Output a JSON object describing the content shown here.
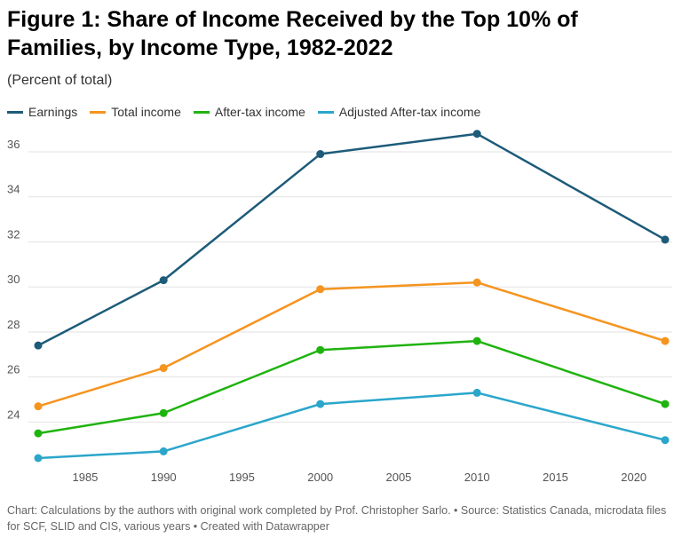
{
  "title": "Figure 1: Share of Income Received by the Top 10% of Families, by Income Type, 1982-2022",
  "subtitle": "(Percent of total)",
  "footer": "Chart: Calculations by the authors with original work completed by Prof. Christopher Sarlo. • Source: Statistics Canada, microdata files for SCF, SLID and CIS, various years • Created with Datawrapper",
  "colors": {
    "earnings": "#1d5b79",
    "total_income": "#f5941f",
    "after_tax_income": "#1fb30e",
    "adjusted_after_tax_income": "#2ba6cb"
  },
  "chart_data": {
    "type": "line",
    "x": [
      1982,
      1990,
      2000,
      2010,
      2022
    ],
    "xlim": [
      1982,
      2022
    ],
    "xticks": [
      1985,
      1990,
      1995,
      2000,
      2005,
      2010,
      2015,
      2020
    ],
    "ylim": [
      22.4,
      37
    ],
    "yticks": [
      24,
      26,
      28,
      30,
      32,
      34,
      36
    ],
    "grid": true,
    "legend_position": "top-left",
    "series": [
      {
        "name": "Earnings",
        "color": "#1d5b79",
        "values": [
          27.4,
          30.3,
          35.9,
          36.8,
          32.1
        ]
      },
      {
        "name": "Total income",
        "color": "#f5941f",
        "values": [
          24.7,
          26.4,
          29.9,
          30.2,
          27.6
        ]
      },
      {
        "name": "After-tax income",
        "color": "#1fb30e",
        "values": [
          23.5,
          24.4,
          27.2,
          27.6,
          24.8
        ]
      },
      {
        "name": "Adjusted After-tax income",
        "color": "#2ba6cb",
        "values": [
          22.4,
          22.7,
          24.8,
          25.3,
          23.2
        ]
      }
    ]
  }
}
